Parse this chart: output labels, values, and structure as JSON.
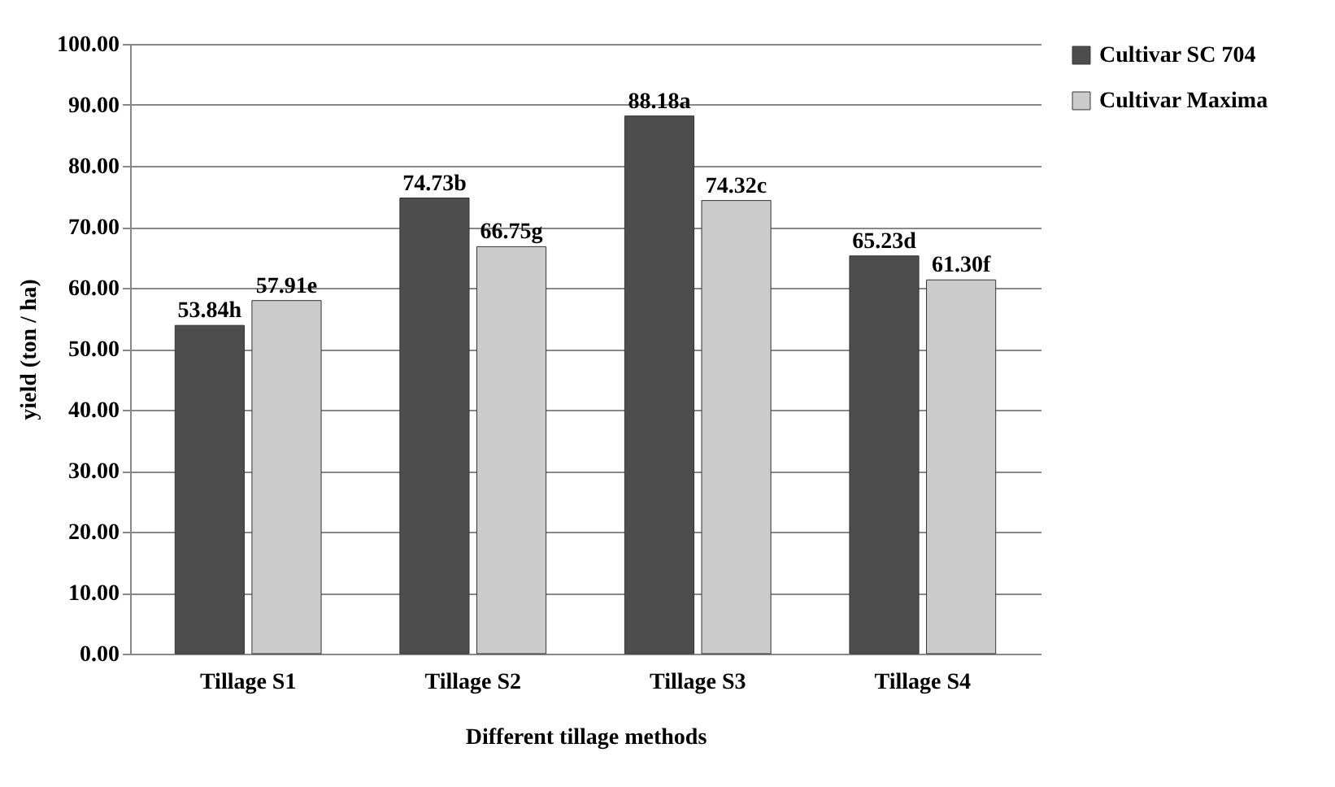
{
  "chart_data": {
    "type": "bar",
    "xlabel": "Different tillage methods",
    "ylabel": "yield (ton / ha)",
    "categories": [
      "Tillage S1",
      "Tillage S2",
      "Tillage S3",
      "Tillage S4"
    ],
    "series": [
      {
        "name": "Cultivar SC 704",
        "color": "#4d4d4d",
        "values": [
          53.84,
          74.73,
          88.18,
          65.23
        ],
        "value_labels": [
          "53.84h",
          "74.73b",
          "88.18a",
          "65.23d"
        ]
      },
      {
        "name": "Cultivar Maxima",
        "color": "#cccccc",
        "values": [
          57.91,
          66.75,
          74.32,
          61.3
        ],
        "value_labels": [
          "57.91e",
          "66.75g",
          "74.32c",
          "61.30f"
        ]
      }
    ],
    "ylim": [
      0,
      100
    ],
    "yticks": [
      {
        "value": 0,
        "label": "0.00"
      },
      {
        "value": 10,
        "label": "10.00"
      },
      {
        "value": 20,
        "label": "20.00"
      },
      {
        "value": 30,
        "label": "30.00"
      },
      {
        "value": 40,
        "label": "40.00"
      },
      {
        "value": 50,
        "label": "50.00"
      },
      {
        "value": 60,
        "label": "60.00"
      },
      {
        "value": 70,
        "label": "70.00"
      },
      {
        "value": 80,
        "label": "80.00"
      },
      {
        "value": 90,
        "label": "90.00"
      },
      {
        "value": 100,
        "label": "100.00"
      }
    ],
    "grid": "y",
    "legend": "right"
  }
}
